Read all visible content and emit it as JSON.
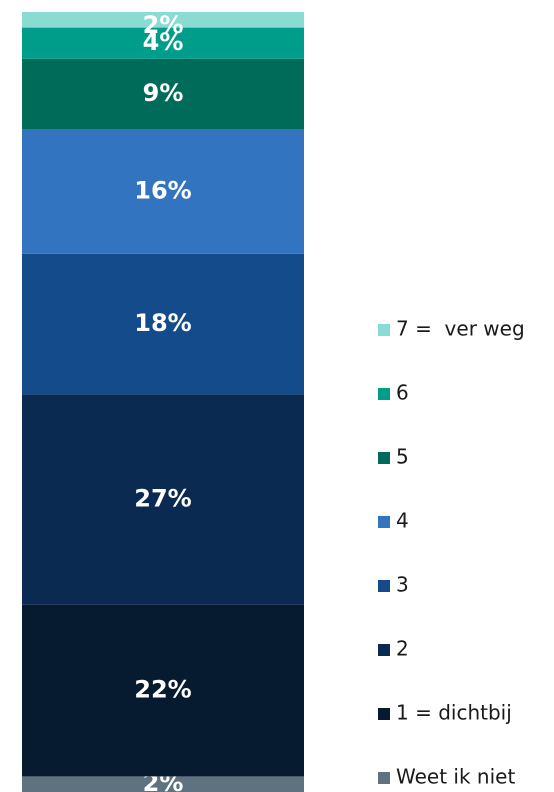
{
  "chart_data": {
    "type": "stacked_bar",
    "series": [
      {
        "name": "Weet ik niet",
        "color": "#5f7280",
        "values": [
          2
        ],
        "value_labels": [
          "2%"
        ]
      },
      {
        "name": "1 = dichtbij",
        "color": "#061a30",
        "values": [
          22
        ],
        "value_labels": [
          "22%"
        ]
      },
      {
        "name": "2",
        "color": "#0a2a51",
        "values": [
          27
        ],
        "value_labels": [
          "27%"
        ]
      },
      {
        "name": "3",
        "color": "#134b8b",
        "values": [
          18
        ],
        "value_labels": [
          "18%"
        ]
      },
      {
        "name": "4",
        "color": "#3274bf",
        "values": [
          16
        ],
        "value_labels": [
          "16%"
        ]
      },
      {
        "name": "5",
        "color": "#006b58",
        "values": [
          9
        ],
        "value_labels": [
          "9%"
        ]
      },
      {
        "name": "6",
        "color": "#009e8a",
        "values": [
          4
        ],
        "value_labels": [
          "4%"
        ]
      },
      {
        "name": "7 =  ver weg",
        "color": "#8adcd2",
        "values": [
          2
        ],
        "value_labels": [
          "2%"
        ]
      }
    ]
  }
}
